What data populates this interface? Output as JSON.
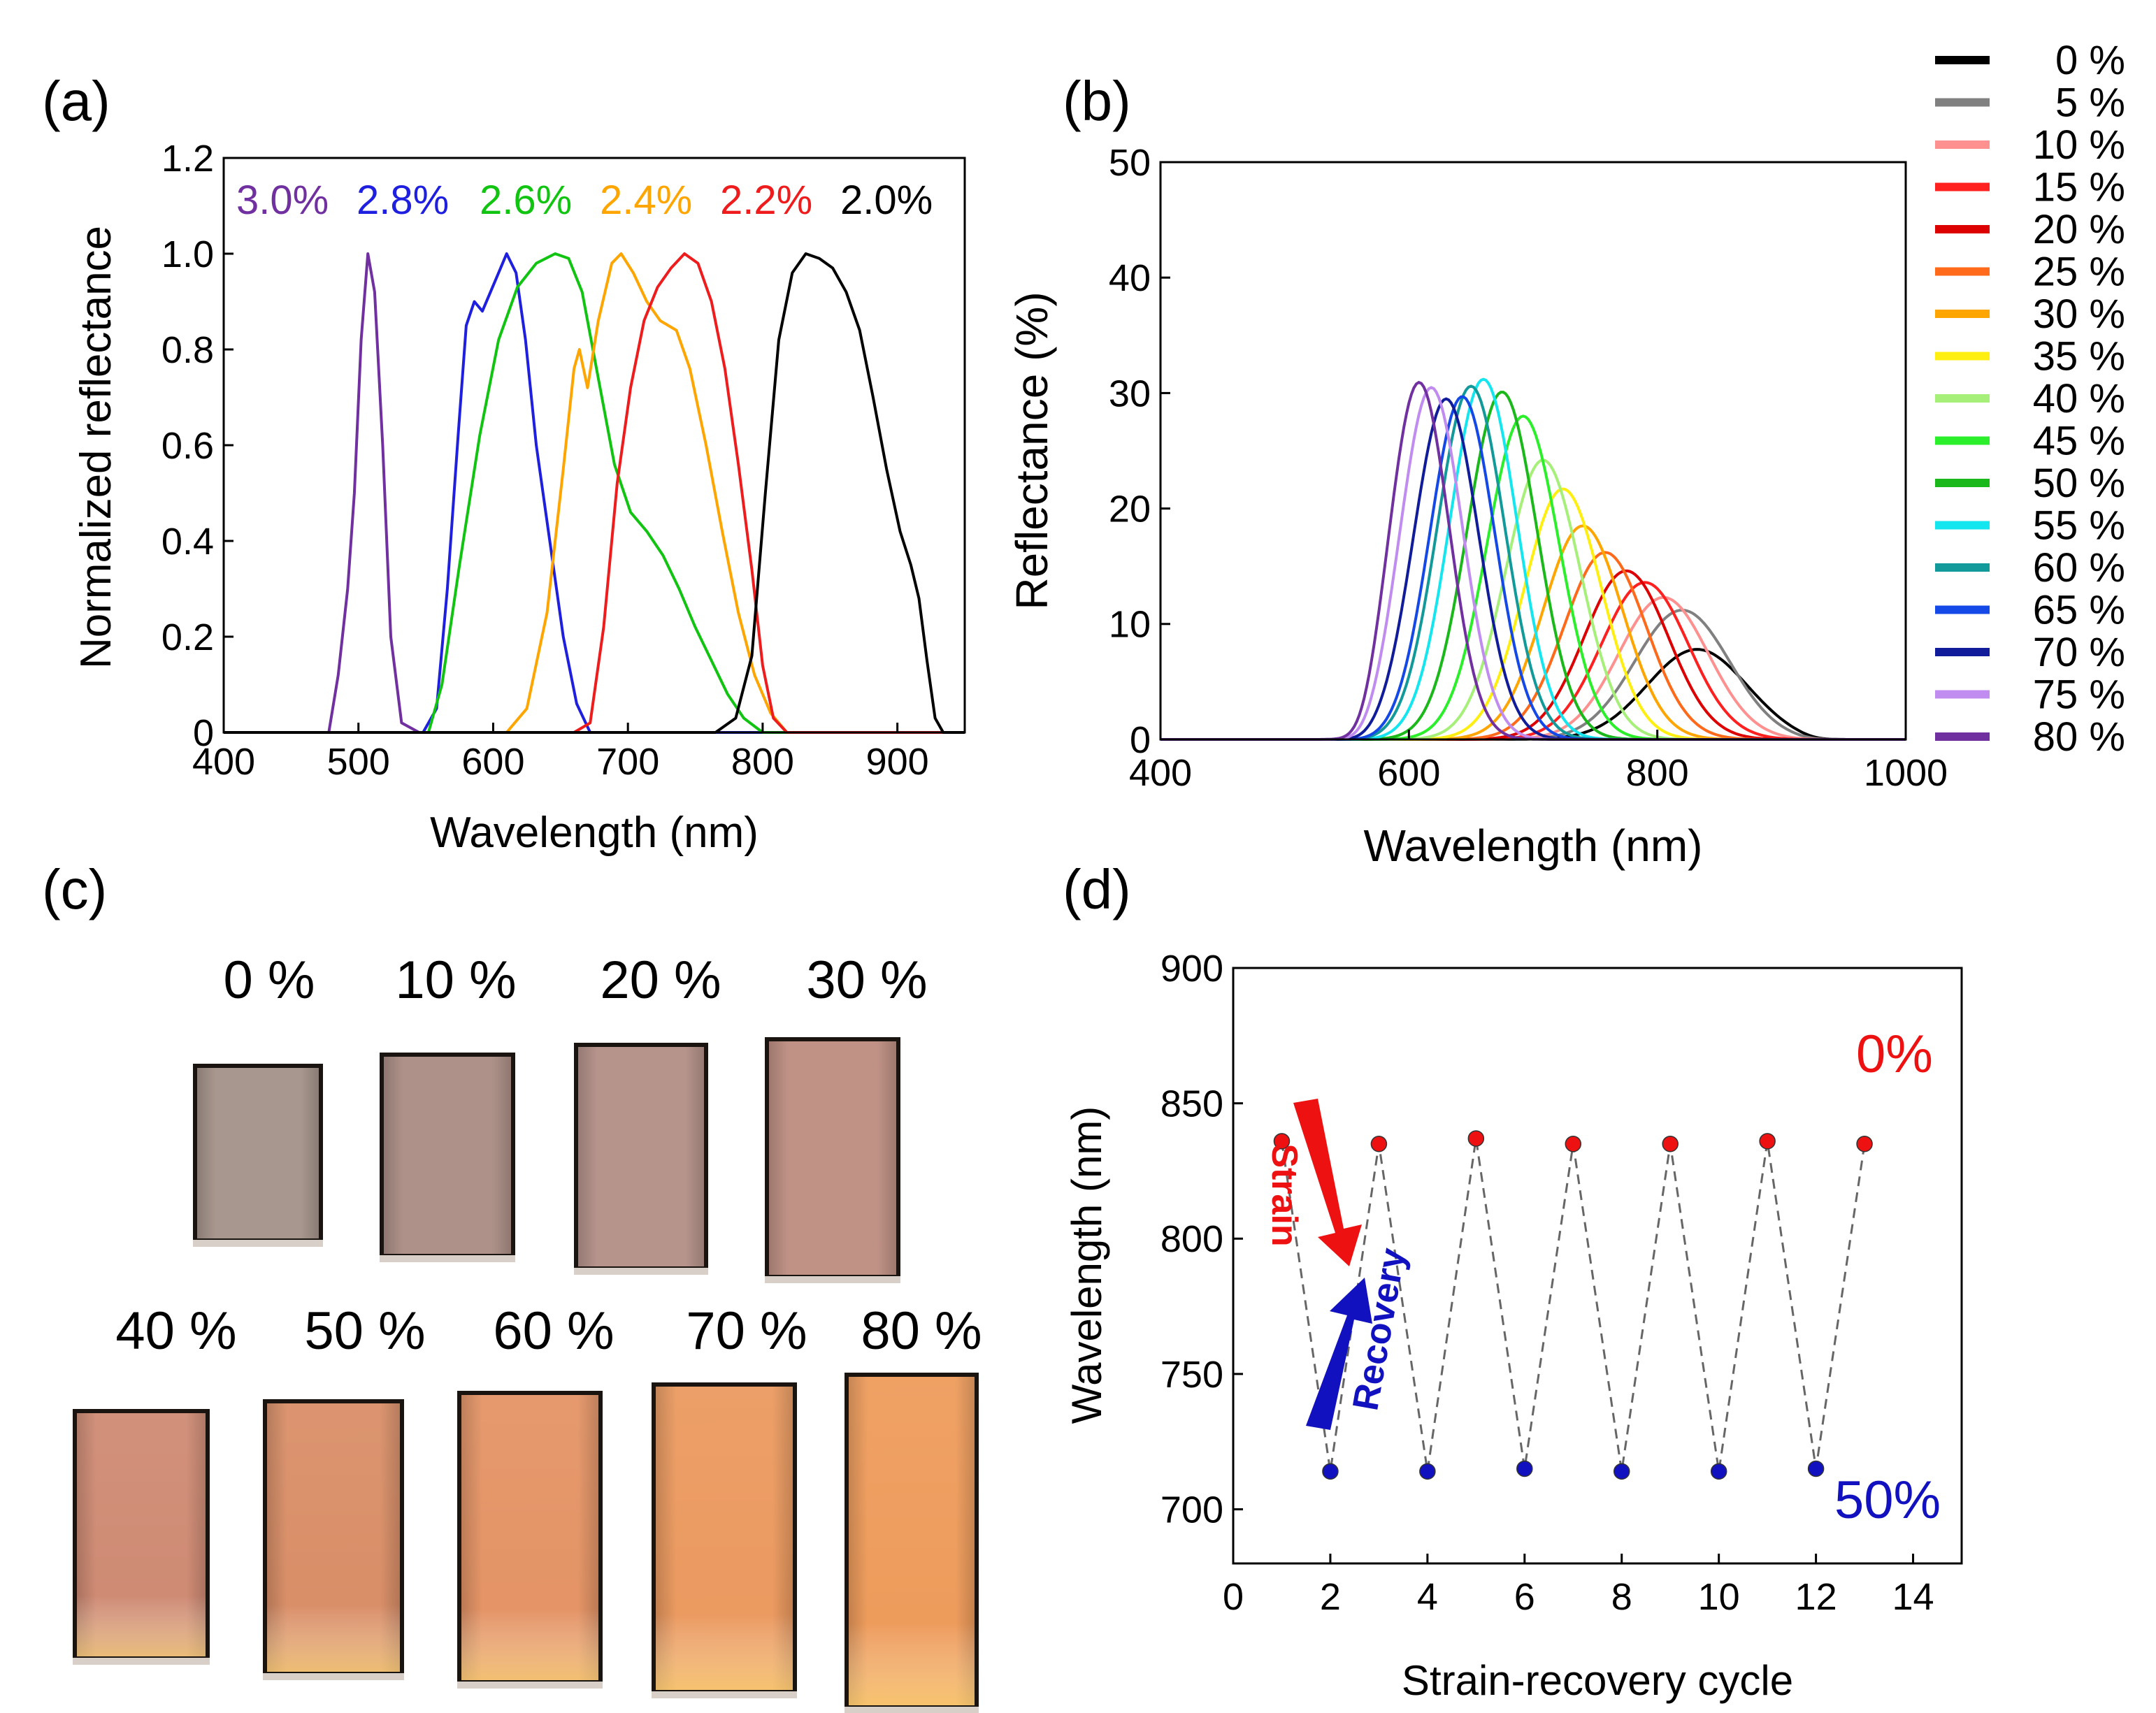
{
  "colors": {
    "s30": "#7030a0",
    "s28": "#1f1fe0",
    "s26": "#12c412",
    "s24": "#ffa500",
    "s22": "#ee1c1c",
    "s20": "#000000",
    "legend_b": [
      "#000000",
      "#808080",
      "#ff9090",
      "#ff2020",
      "#dd0000",
      "#ff6a1a",
      "#ffa500",
      "#ffef10",
      "#a6f07a",
      "#2bef2b",
      "#1ab81a",
      "#14e6ef",
      "#129a9a",
      "#1449e8",
      "#101c9a",
      "#c08cef",
      "#7030a0"
    ],
    "red": "#ee1111",
    "blue": "#1111c0",
    "dash": "#666666"
  },
  "panel_a": {
    "label": "(a)",
    "chart_data": {
      "type": "line",
      "title": "",
      "xlabel": "Wavelength (nm)",
      "ylabel": "Normalized reflectance",
      "xlim": [
        400,
        950
      ],
      "ylim": [
        0,
        1.2
      ],
      "xticks": [
        "400",
        "500",
        "600",
        "700",
        "800",
        "900"
      ],
      "yticks": [
        "0",
        "0.2",
        "0.4",
        "0.6",
        "0.8",
        "1.0",
        "1.2"
      ],
      "xtick_values": [
        400,
        500,
        600,
        700,
        800,
        900
      ],
      "ytick_values": [
        0,
        0.2,
        0.4,
        0.6,
        0.8,
        1.0,
        1.2
      ],
      "series": [
        {
          "name": "3.0%",
          "color": "#7030a0",
          "points": [
            [
              400,
              0
            ],
            [
              478,
              0
            ],
            [
              485,
              0.12
            ],
            [
              492,
              0.3
            ],
            [
              497,
              0.5
            ],
            [
              502,
              0.82
            ],
            [
              507,
              1.0
            ],
            [
              512,
              0.92
            ],
            [
              518,
              0.6
            ],
            [
              524,
              0.2
            ],
            [
              532,
              0.02
            ],
            [
              545,
              0
            ],
            [
              950,
              0
            ]
          ]
        },
        {
          "name": "2.8%",
          "color": "#1f1fe0",
          "points": [
            [
              400,
              0
            ],
            [
              548,
              0
            ],
            [
              558,
              0.05
            ],
            [
              566,
              0.3
            ],
            [
              574,
              0.62
            ],
            [
              580,
              0.85
            ],
            [
              586,
              0.9
            ],
            [
              592,
              0.88
            ],
            [
              598,
              0.92
            ],
            [
              604,
              0.96
            ],
            [
              610,
              1.0
            ],
            [
              617,
              0.96
            ],
            [
              624,
              0.82
            ],
            [
              632,
              0.6
            ],
            [
              642,
              0.4
            ],
            [
              652,
              0.2
            ],
            [
              662,
              0.06
            ],
            [
              672,
              0
            ],
            [
              950,
              0
            ]
          ]
        },
        {
          "name": "2.6%",
          "color": "#12c412",
          "points": [
            [
              400,
              0
            ],
            [
              552,
              0
            ],
            [
              562,
              0.1
            ],
            [
              575,
              0.35
            ],
            [
              590,
              0.62
            ],
            [
              604,
              0.82
            ],
            [
              618,
              0.93
            ],
            [
              632,
              0.98
            ],
            [
              646,
              1.0
            ],
            [
              656,
              0.99
            ],
            [
              666,
              0.92
            ],
            [
              678,
              0.74
            ],
            [
              690,
              0.56
            ],
            [
              702,
              0.46
            ],
            [
              714,
              0.42
            ],
            [
              726,
              0.37
            ],
            [
              738,
              0.3
            ],
            [
              750,
              0.22
            ],
            [
              762,
              0.15
            ],
            [
              774,
              0.08
            ],
            [
              786,
              0.03
            ],
            [
              800,
              0
            ],
            [
              950,
              0
            ]
          ]
        },
        {
          "name": "2.4%",
          "color": "#ffa500",
          "points": [
            [
              400,
              0
            ],
            [
              610,
              0
            ],
            [
              625,
              0.05
            ],
            [
              640,
              0.25
            ],
            [
              652,
              0.55
            ],
            [
              660,
              0.76
            ],
            [
              664,
              0.8
            ],
            [
              670,
              0.72
            ],
            [
              678,
              0.86
            ],
            [
              688,
              0.98
            ],
            [
              695,
              1.0
            ],
            [
              704,
              0.96
            ],
            [
              714,
              0.9
            ],
            [
              724,
              0.86
            ],
            [
              736,
              0.84
            ],
            [
              746,
              0.76
            ],
            [
              758,
              0.6
            ],
            [
              770,
              0.42
            ],
            [
              782,
              0.25
            ],
            [
              794,
              0.12
            ],
            [
              806,
              0.04
            ],
            [
              818,
              0
            ],
            [
              950,
              0
            ]
          ]
        },
        {
          "name": "2.2%",
          "color": "#ee1c1c",
          "points": [
            [
              400,
              0
            ],
            [
              660,
              0
            ],
            [
              672,
              0.02
            ],
            [
              682,
              0.22
            ],
            [
              692,
              0.52
            ],
            [
              702,
              0.72
            ],
            [
              712,
              0.86
            ],
            [
              722,
              0.93
            ],
            [
              732,
              0.97
            ],
            [
              742,
              1.0
            ],
            [
              752,
              0.98
            ],
            [
              762,
              0.9
            ],
            [
              772,
              0.76
            ],
            [
              782,
              0.56
            ],
            [
              792,
              0.34
            ],
            [
              800,
              0.14
            ],
            [
              808,
              0.03
            ],
            [
              818,
              0
            ],
            [
              950,
              0
            ]
          ]
        },
        {
          "name": "2.0%",
          "color": "#000000",
          "points": [
            [
              400,
              0
            ],
            [
              765,
              0
            ],
            [
              780,
              0.03
            ],
            [
              792,
              0.16
            ],
            [
              802,
              0.5
            ],
            [
              812,
              0.82
            ],
            [
              822,
              0.96
            ],
            [
              832,
              1.0
            ],
            [
              842,
              0.99
            ],
            [
              852,
              0.97
            ],
            [
              862,
              0.92
            ],
            [
              872,
              0.84
            ],
            [
              882,
              0.7
            ],
            [
              892,
              0.55
            ],
            [
              902,
              0.42
            ],
            [
              910,
              0.35
            ],
            [
              916,
              0.28
            ],
            [
              922,
              0.15
            ],
            [
              928,
              0.03
            ],
            [
              934,
              0
            ],
            [
              950,
              0
            ]
          ]
        }
      ],
      "annotations": [
        "3.0%",
        "2.8%",
        "2.6%",
        "2.4%",
        "2.2%",
        "2.0%"
      ]
    }
  },
  "panel_b": {
    "label": "(b)",
    "chart_data": {
      "type": "line",
      "title": "",
      "xlabel": "Wavelength (nm)",
      "ylabel": "Reflectance (%)",
      "xlim": [
        400,
        1000
      ],
      "ylim": [
        0,
        50
      ],
      "xticks": [
        "400",
        "600",
        "800",
        "1000"
      ],
      "yticks": [
        "0",
        "10",
        "20",
        "30",
        "40",
        "50"
      ],
      "xtick_values": [
        400,
        600,
        800,
        1000
      ],
      "ytick_values": [
        0,
        10,
        20,
        30,
        40,
        50
      ],
      "peak_model": {
        "lambda_start": 560,
        "lambda_end": 925,
        "edge_width": 8
      },
      "series": [
        {
          "name": "0 %",
          "peak_x": 832,
          "peak_y": 7.8,
          "sigma": 40
        },
        {
          "name": "5 %",
          "peak_x": 820,
          "peak_y": 11.2,
          "sigma": 38
        },
        {
          "name": "10 %",
          "peak_x": 805,
          "peak_y": 12.3,
          "sigma": 36
        },
        {
          "name": "15 %",
          "peak_x": 790,
          "peak_y": 13.6,
          "sigma": 35
        },
        {
          "name": "20 %",
          "peak_x": 775,
          "peak_y": 14.6,
          "sigma": 34
        },
        {
          "name": "25 %",
          "peak_x": 758,
          "peak_y": 16.2,
          "sigma": 33
        },
        {
          "name": "30 %",
          "peak_x": 740,
          "peak_y": 18.5,
          "sigma": 32
        },
        {
          "name": "35 %",
          "peak_x": 724,
          "peak_y": 21.7,
          "sigma": 31
        },
        {
          "name": "40 %",
          "peak_x": 708,
          "peak_y": 24.2,
          "sigma": 30
        },
        {
          "name": "45 %",
          "peak_x": 692,
          "peak_y": 28.0,
          "sigma": 29
        },
        {
          "name": "50 %",
          "peak_x": 675,
          "peak_y": 30.1,
          "sigma": 28
        },
        {
          "name": "55 %",
          "peak_x": 660,
          "peak_y": 31.2,
          "sigma": 27
        },
        {
          "name": "60 %",
          "peak_x": 650,
          "peak_y": 30.6,
          "sigma": 27
        },
        {
          "name": "65 %",
          "peak_x": 643,
          "peak_y": 29.7,
          "sigma": 26
        },
        {
          "name": "70 %",
          "peak_x": 630,
          "peak_y": 29.5,
          "sigma": 26
        },
        {
          "name": "75 %",
          "peak_x": 618,
          "peak_y": 30.5,
          "sigma": 25
        },
        {
          "name": "80 %",
          "peak_x": 608,
          "peak_y": 31.0,
          "sigma": 24
        }
      ],
      "legend": [
        "0 %",
        "5 %",
        "10 %",
        "15 %",
        "20 %",
        "25 %",
        "30 %",
        "35 %",
        "40 %",
        "45 %",
        "50 %",
        "55 %",
        "60 %",
        "65 %",
        "70 %",
        "75 %",
        "80 %"
      ],
      "legend_position": "right"
    }
  },
  "panel_c": {
    "label": "(c)",
    "row1_labels": [
      "0 %",
      "10 %",
      "20 %",
      "30 %"
    ],
    "row2_labels": [
      "40 %",
      "50 %",
      "60 %",
      "70 %",
      "80 %"
    ],
    "sample_strain_fraction": [
      0,
      0.1,
      0.2,
      0.3,
      0.4,
      0.5,
      0.6,
      0.7,
      0.8
    ],
    "sample_colors": [
      "#a8978e",
      "#ae9289",
      "#b6948c",
      "#c09286",
      "#cf8b74",
      "#d98f68",
      "#e49466",
      "#eb9a60",
      "#ee9c5c"
    ]
  },
  "panel_d": {
    "label": "(d)",
    "chart_data": {
      "type": "scatter",
      "title": "",
      "xlabel": "Strain-recovery cycle",
      "ylabel": "Wavelength (nm)",
      "xlim": [
        0,
        15
      ],
      "ylim": [
        680,
        900
      ],
      "xticks": [
        "0",
        "2",
        "4",
        "6",
        "8",
        "10",
        "12",
        "14"
      ],
      "yticks": [
        "700",
        "750",
        "800",
        "850",
        "900"
      ],
      "xtick_values": [
        0,
        2,
        4,
        6,
        8,
        10,
        12,
        14
      ],
      "ytick_values": [
        700,
        750,
        800,
        850,
        900
      ],
      "series": [
        {
          "name": "0%",
          "color": "#ee1111",
          "x": [
            1,
            3,
            5,
            7,
            9,
            11,
            13
          ],
          "y": [
            836,
            835,
            837,
            835,
            835,
            836,
            835
          ]
        },
        {
          "name": "50%",
          "color": "#1111c0",
          "x": [
            2,
            4,
            6,
            8,
            10,
            12
          ],
          "y": [
            714,
            714,
            715,
            714,
            714,
            715
          ]
        }
      ],
      "connect_line": "dashed",
      "annotations": {
        "strain": "Strain",
        "recovery": "Recovery",
        "top": "0%",
        "bottom": "50%"
      }
    }
  }
}
